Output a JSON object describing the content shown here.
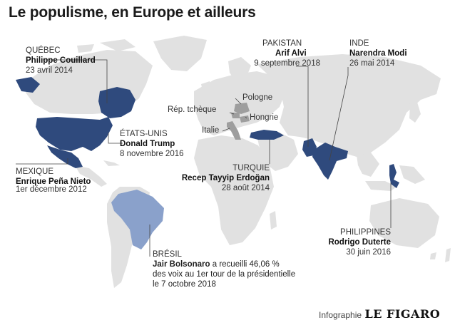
{
  "title": "Le populisme, en Europe et ailleurs",
  "colors": {
    "land": "#e1e1e1",
    "highlight": "#2f4a7d",
    "brazil": "#8aa1cb",
    "europe": "#9e9e9e",
    "leader": "#444444"
  },
  "labels": {
    "quebec": {
      "country": "QUÉBEC",
      "name": "Philippe Couillard",
      "date": "23 avril 2014"
    },
    "usa": {
      "country": "ÉTATS-UNIS",
      "name": "Donald Trump",
      "date": "8 novembre 2016"
    },
    "mexique": {
      "country": "MEXIQUE",
      "name": "Enrique Peña Nieto",
      "date": "1er décembre 2012"
    },
    "pakistan": {
      "country": "PAKISTAN",
      "name": "Arif Alvi",
      "date": "9 septembre 2018"
    },
    "inde": {
      "country": "INDE",
      "name": "Narendra Modi",
      "date": "26 mai 2014"
    },
    "turquie": {
      "country": "TURQUIE",
      "name": "Recep Tayyip Erdoğan",
      "date": "28 août 2014"
    },
    "philippines": {
      "country": "PHILIPPINES",
      "name": "Rodrigo Duterte",
      "date": "30 juin 2016"
    },
    "bresil": {
      "country": "BRÉSIL",
      "name": "Jair Bolsonaro",
      "text1": " a recueilli 46,06 %",
      "text2": "des voix au 1er tour de la présidentielle",
      "text3": "le 7 octobre 2018"
    }
  },
  "europe": {
    "pologne": "Pologne",
    "rep_tcheque": "Rép. tchèque",
    "hongrie": "Hongrie",
    "italie": "Italie"
  },
  "credit": {
    "infographie": "Infographie",
    "figaro": "LE FIGARO"
  }
}
